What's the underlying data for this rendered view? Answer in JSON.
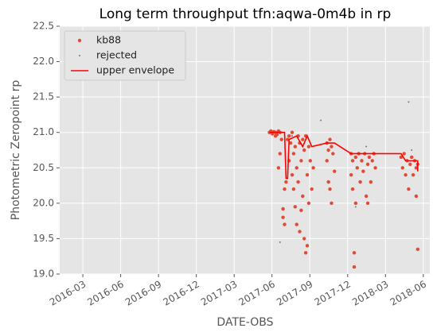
{
  "chart_data": {
    "type": "scatter",
    "title": "Long term throughput  tfn:aqwa-0m4b in rp",
    "xlabel": "DATE-OBS",
    "ylabel": "Photometric Zeropoint rp",
    "xlim": [
      2016.014,
      2018.46
    ],
    "xticks": [
      {
        "value": 2016.167,
        "label": "2016-03"
      },
      {
        "value": 2016.417,
        "label": "2016-06"
      },
      {
        "value": 2016.667,
        "label": "2016-09"
      },
      {
        "value": 2016.917,
        "label": "2016-12"
      },
      {
        "value": 2017.167,
        "label": "2017-03"
      },
      {
        "value": 2017.417,
        "label": "2017-06"
      },
      {
        "value": 2017.667,
        "label": "2017-09"
      },
      {
        "value": 2017.917,
        "label": "2017-12"
      },
      {
        "value": 2018.167,
        "label": "2018-03"
      },
      {
        "value": 2018.417,
        "label": "2018-06"
      }
    ],
    "ylim": [
      19,
      22.5
    ],
    "yticks": [
      {
        "value": 19,
        "label": "19.0"
      },
      19.5,
      {
        "value": 20,
        "label": "20.0"
      },
      20.5,
      {
        "value": 21,
        "label": "21.0"
      },
      21.5,
      {
        "value": 22,
        "label": "22.0"
      },
      22.5
    ],
    "grid": true,
    "legend": "upper left",
    "series": [
      {
        "name": "kb88",
        "color": "#e24a33",
        "kind": "points",
        "x": [
          2017.4,
          2017.41,
          2017.42,
          2017.43,
          2017.44,
          2017.45,
          2017.46,
          2017.47,
          2017.44,
          2017.46,
          2017.47,
          2017.48,
          2017.49,
          2017.49,
          2017.5,
          2017.5,
          2017.51,
          2017.52,
          2017.53,
          2017.53,
          2017.54,
          2017.55,
          2017.55,
          2017.56,
          2017.56,
          2017.57,
          2017.57,
          2017.58,
          2017.58,
          2017.59,
          2017.59,
          2017.6,
          2017.6,
          2017.61,
          2017.61,
          2017.62,
          2017.62,
          2017.63,
          2017.63,
          2017.64,
          2017.64,
          2017.65,
          2017.65,
          2017.66,
          2017.66,
          2017.67,
          2017.68,
          2017.69,
          2017.78,
          2017.78,
          2017.79,
          2017.79,
          2017.8,
          2017.8,
          2017.81,
          2017.81,
          2017.82,
          2017.83,
          2017.94,
          2017.94,
          2017.95,
          2017.95,
          2017.96,
          2017.96,
          2017.97,
          2017.97,
          2017.98,
          2017.99,
          2018.0,
          2018.01,
          2018.02,
          2018.03,
          2018.04,
          2018.05,
          2018.05,
          2018.06,
          2018.07,
          2018.08,
          2018.09,
          2018.1,
          2018.27,
          2018.28,
          2018.29,
          2018.3,
          2018.31,
          2018.32,
          2018.33,
          2018.34,
          2018.35,
          2018.36,
          2018.37,
          2018.37,
          2018.38,
          2018.38
        ],
        "values": [
          21.0,
          21.02,
          20.98,
          21.01,
          21.0,
          20.97,
          21.02,
          21.0,
          20.95,
          20.5,
          20.7,
          20.9,
          19.92,
          19.8,
          19.7,
          20.2,
          20.3,
          20.9,
          20.95,
          20.6,
          20.85,
          20.4,
          21.0,
          20.7,
          20.2,
          19.95,
          20.8,
          20.5,
          19.7,
          20.95,
          20.3,
          19.6,
          20.85,
          20.6,
          19.9,
          20.9,
          20.1,
          19.5,
          20.75,
          19.3,
          20.95,
          19.4,
          20.4,
          20.8,
          20.0,
          20.6,
          20.2,
          20.5,
          20.85,
          20.6,
          20.3,
          20.75,
          20.2,
          20.9,
          20.0,
          20.8,
          20.7,
          20.45,
          20.7,
          20.4,
          20.6,
          20.2,
          19.3,
          19.1,
          20.65,
          20.0,
          20.5,
          20.7,
          20.3,
          20.6,
          20.45,
          20.7,
          20.1,
          20.0,
          20.55,
          20.65,
          20.3,
          20.6,
          20.7,
          20.5,
          20.65,
          20.5,
          20.7,
          20.4,
          20.6,
          20.2,
          20.55,
          20.65,
          20.4,
          20.6,
          20.1,
          20.5,
          20.55,
          19.35
        ]
      },
      {
        "name": "rejected",
        "color": "#777777",
        "kind": "dots",
        "x": [
          2017.47,
          2017.74,
          2017.97,
          2018.04,
          2018.32,
          2018.34,
          2017.55
        ],
        "values": [
          19.45,
          21.17,
          19.95,
          20.8,
          21.43,
          20.75,
          20.95
        ]
      },
      {
        "name": "upper envelope",
        "color": "#ff0000",
        "kind": "line",
        "x": [
          2017.4,
          2017.5,
          2017.51,
          2017.52,
          2017.53,
          2017.58,
          2017.62,
          2017.65,
          2017.68,
          2017.78,
          2017.83,
          2017.94,
          2018.2,
          2018.27,
          2018.3,
          2018.38,
          2018.38
        ],
        "values": [
          21.0,
          21.0,
          20.35,
          20.35,
          20.9,
          20.95,
          20.8,
          20.95,
          20.8,
          20.85,
          20.85,
          20.7,
          20.7,
          20.7,
          20.6,
          20.6,
          20.45
        ]
      }
    ]
  }
}
